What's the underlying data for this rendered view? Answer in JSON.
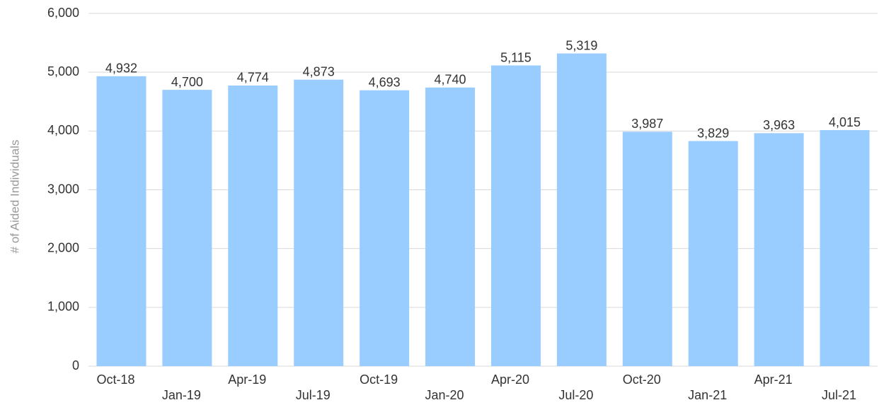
{
  "chart_data": {
    "type": "bar",
    "y_label": "# of Aided Individuals",
    "categories": [
      "Oct-18",
      "Jan-19",
      "Apr-19",
      "Jul-19",
      "Oct-19",
      "Jan-20",
      "Apr-20",
      "Jul-20",
      "Oct-20",
      "Jan-21",
      "Apr-21",
      "Jul-21"
    ],
    "values": [
      4932,
      4700,
      4774,
      4873,
      4693,
      4740,
      5115,
      5319,
      3987,
      3829,
      3963,
      4015
    ],
    "value_labels": [
      "4,932",
      "4,700",
      "4,774",
      "4,873",
      "4,693",
      "4,740",
      "5,115",
      "5,319",
      "3,987",
      "3,829",
      "3,963",
      "4,015"
    ],
    "color": "#99ccff",
    "ylim": [
      0,
      6000
    ],
    "yticks": [
      0,
      {
        "value": 1000,
        "label": "1,000"
      },
      {
        "value": 2000,
        "label": "2,000"
      },
      {
        "value": 3000,
        "label": "3,000"
      },
      {
        "value": 4000,
        "label": "4,000"
      },
      {
        "value": 5000,
        "label": "5,000"
      },
      {
        "value": 6000,
        "label": "6,000"
      }
    ],
    "grid": true
  }
}
